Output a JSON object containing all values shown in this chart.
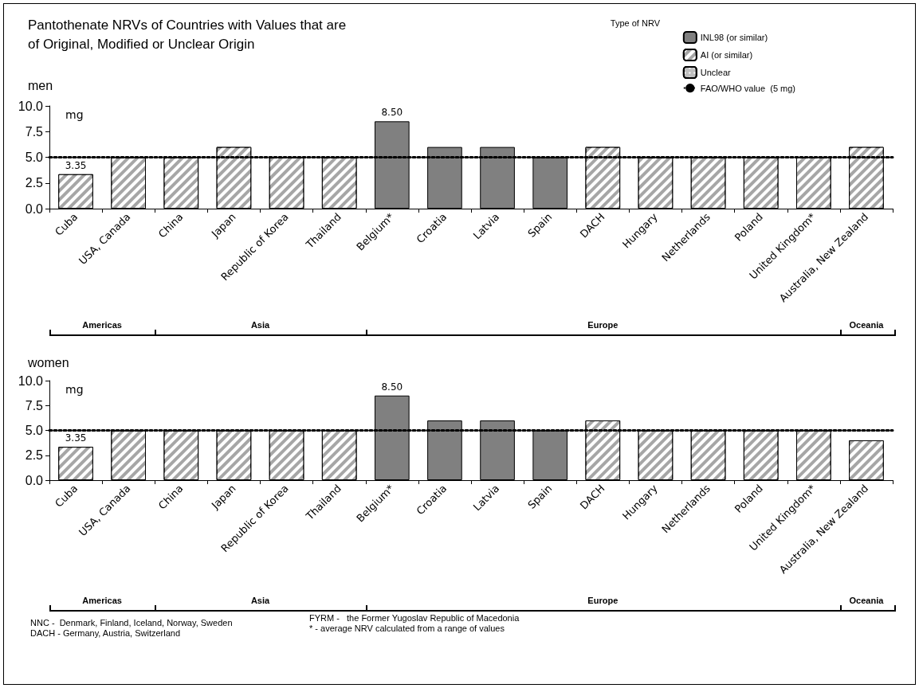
{
  "chart_data": [
    {
      "type": "bar",
      "title": "Pantothenate NRVs of Countries with Values that are\nof Original, Modified or Unclear Origin",
      "subtitle": "men",
      "ylabel": "mg",
      "legend_title": "Type of NRV",
      "legend": "top right",
      "stacked": true,
      "categories": [
        "Cuba",
        "USA, Canada",
        "China",
        "Japan",
        "Republic of Korea",
        "Thailand",
        "Belgium*",
        "Croatia",
        "Latvia",
        "Spain",
        "DACH",
        "Hungary",
        "Netherlands",
        "Poland",
        "United Kingdom*",
        "Australia, New Zealand"
      ],
      "series": [
        {
          "name": "INL98 (or similar)",
          "color": "#808080",
          "values": [
            null,
            null,
            null,
            null,
            null,
            null,
            8.5,
            6,
            6,
            5,
            null,
            null,
            null,
            null,
            null,
            null
          ],
          "value_labels": [
            null,
            null,
            null,
            null,
            null,
            null,
            "8.50",
            null,
            null,
            null,
            null,
            null,
            null,
            null,
            null,
            null
          ]
        },
        {
          "name": "AI (or similar)",
          "color": "#a6a6a6",
          "values": [
            3.35,
            5,
            5,
            6,
            5,
            5,
            null,
            null,
            null,
            null,
            6,
            5,
            5,
            5,
            5,
            6
          ],
          "value_labels": [
            "3.35",
            null,
            null,
            null,
            null,
            null,
            null,
            null,
            null,
            null,
            null,
            null,
            null,
            null,
            null,
            null
          ]
        },
        {
          "name": "Unclear",
          "color": "#bfbfbf",
          "values": [
            null,
            null,
            null,
            null,
            null,
            null,
            null,
            null,
            null,
            null,
            null,
            null,
            null,
            null,
            null,
            null
          ]
        }
      ],
      "ylim": [
        0,
        10
      ],
      "yticks": [
        {
          "value": 0,
          "label": "0.0"
        },
        {
          "value": 2.5,
          "label": "2.5"
        },
        {
          "value": 5,
          "label": "5.0"
        },
        {
          "value": 7.5,
          "label": "7.5"
        },
        {
          "value": 10,
          "label": "10.0"
        }
      ],
      "ref_lines": [
        {
          "axis": "y",
          "value": 5,
          "label": "FAO/WHO value  (5 mg)",
          "color": "#000000",
          "line_style": "dotted"
        }
      ],
      "annotations": [
        "Americas",
        "Asia",
        "Europe",
        "Oceania"
      ]
    },
    {
      "type": "bar",
      "subtitle": "women",
      "ylabel": "mg",
      "stacked": true,
      "categories": [
        "Cuba",
        "USA, Canada",
        "China",
        "Japan",
        "Republic of Korea",
        "Thailand",
        "Belgium*",
        "Croatia",
        "Latvia",
        "Spain",
        "DACH",
        "Hungary",
        "Netherlands",
        "Poland",
        "United Kingdom*",
        "Australia, New Zealand"
      ],
      "series": [
        {
          "color": "#808080",
          "values": [
            null,
            null,
            null,
            null,
            null,
            null,
            8.5,
            6,
            6,
            5,
            null,
            null,
            null,
            null,
            null,
            null
          ],
          "value_labels": [
            null,
            null,
            null,
            null,
            null,
            null,
            "8.50",
            null,
            null,
            null,
            null,
            null,
            null,
            null,
            null,
            null
          ]
        },
        {
          "color": "#a6a6a6",
          "values": [
            3.35,
            5,
            5,
            5,
            5,
            5,
            null,
            null,
            null,
            null,
            6,
            5,
            5,
            5,
            5,
            4
          ],
          "value_labels": [
            "3.35",
            null,
            null,
            null,
            null,
            null,
            null,
            null,
            null,
            null,
            null,
            null,
            null,
            null,
            null,
            null
          ]
        }
      ],
      "ylim": [
        0,
        10
      ],
      "yticks": [
        {
          "value": 0,
          "label": "0.0"
        },
        {
          "value": 2.5,
          "label": "2.5"
        },
        {
          "value": 5,
          "label": "5.0"
        },
        {
          "value": 7.5,
          "label": "7.5"
        },
        {
          "value": 10,
          "label": "10.0"
        }
      ],
      "ref_lines": [
        {
          "axis": "y",
          "value": 5,
          "color": "#000000",
          "line_style": "dotted"
        }
      ],
      "annotations": [
        "Americas",
        "Asia",
        "Europe",
        "Oceania",
        "NNC -  Denmark, Finland, Iceland, Norway, Sweden",
        "DACH - Germany, Austria, Switzerland",
        "FYRM -   the Former Yugoslav Republic of Macedonia",
        "* - average NRV calculated from a range of values"
      ]
    }
  ]
}
